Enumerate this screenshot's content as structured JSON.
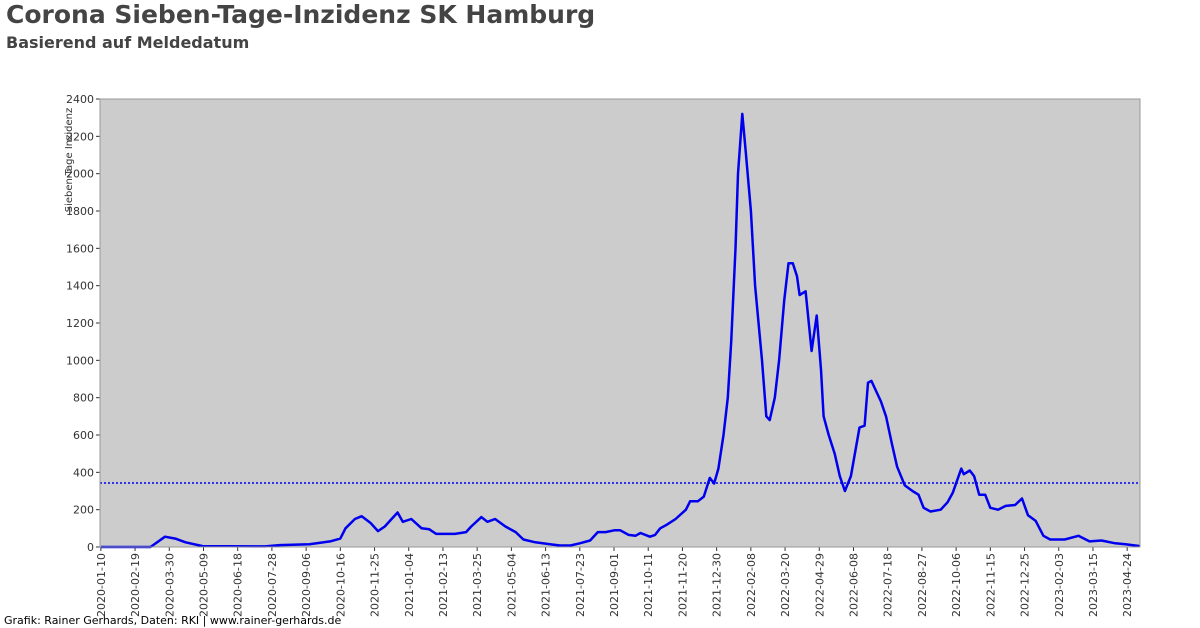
{
  "chart_data": {
    "type": "line",
    "title": "Corona Sieben-Tage-Inzidenz SK Hamburg",
    "subtitle": "Basierend auf Meldedatum",
    "y_label": "Sieben-Tage Inzidenz",
    "footer": "Grafik: Rainer Gerhards, Daten: RKI | www.rainer-gerhards.de",
    "x": [
      "2020-01-10",
      "2020-03-08",
      "2020-03-25",
      "2020-04-06",
      "2020-04-18",
      "2020-05-08",
      "2020-07-20",
      "2020-08-06",
      "2020-09-10",
      "2020-10-04",
      "2020-10-16",
      "2020-10-22",
      "2020-11-02",
      "2020-11-10",
      "2020-11-20",
      "2020-11-29",
      "2020-12-07",
      "2020-12-15",
      "2020-12-22",
      "2020-12-28",
      "2021-01-07",
      "2021-01-19",
      "2021-01-28",
      "2021-02-05",
      "2021-02-27",
      "2021-03-12",
      "2021-03-18",
      "2021-03-30",
      "2021-04-06",
      "2021-04-15",
      "2021-04-27",
      "2021-05-09",
      "2021-05-18",
      "2021-06-01",
      "2021-06-18",
      "2021-06-30",
      "2021-07-12",
      "2021-07-23",
      "2021-08-04",
      "2021-08-13",
      "2021-08-22",
      "2021-09-02",
      "2021-09-08",
      "2021-09-18",
      "2021-09-26",
      "2021-10-02",
      "2021-10-13",
      "2021-10-19",
      "2021-10-25",
      "2021-11-02",
      "2021-11-12",
      "2021-11-24",
      "2021-11-29",
      "2021-12-08",
      "2021-12-15",
      "2021-12-22",
      "2021-12-27",
      "2022-01-01",
      "2022-01-07",
      "2022-01-12",
      "2022-01-16",
      "2022-01-21",
      "2022-01-24",
      "2022-01-29",
      "2022-02-02",
      "2022-02-08",
      "2022-02-13",
      "2022-02-21",
      "2022-02-26",
      "2022-03-02",
      "2022-03-08",
      "2022-03-13",
      "2022-03-19",
      "2022-03-24",
      "2022-03-29",
      "2022-04-03",
      "2022-04-06",
      "2022-04-13",
      "2022-04-20",
      "2022-04-26",
      "2022-05-01",
      "2022-05-04",
      "2022-05-10",
      "2022-05-17",
      "2022-05-23",
      "2022-05-29",
      "2022-06-05",
      "2022-06-15",
      "2022-06-21",
      "2022-06-25",
      "2022-06-29",
      "2022-07-06",
      "2022-07-10",
      "2022-07-16",
      "2022-07-23",
      "2022-07-29",
      "2022-08-07",
      "2022-08-16",
      "2022-08-23",
      "2022-08-29",
      "2022-09-06",
      "2022-09-18",
      "2022-09-26",
      "2022-10-02",
      "2022-10-12",
      "2022-10-15",
      "2022-10-22",
      "2022-10-27",
      "2022-11-02",
      "2022-11-09",
      "2022-11-15",
      "2022-11-24",
      "2022-12-03",
      "2022-12-14",
      "2022-12-22",
      "2022-12-29",
      "2023-01-07",
      "2023-01-16",
      "2023-01-24",
      "2023-02-10",
      "2023-02-26",
      "2023-03-11",
      "2023-03-25",
      "2023-04-10",
      "2023-04-22",
      "2023-05-09"
    ],
    "series": [
      {
        "name": "Sieben-Tage Inzidenz",
        "color": "#0000ee",
        "values": [
          0,
          0,
          55,
          45,
          25,
          5,
          3,
          10,
          15,
          30,
          45,
          100,
          150,
          165,
          130,
          85,
          110,
          150,
          185,
          135,
          150,
          100,
          95,
          70,
          70,
          80,
          110,
          160,
          135,
          150,
          110,
          80,
          40,
          25,
          15,
          8,
          8,
          20,
          35,
          80,
          80,
          90,
          90,
          65,
          60,
          75,
          55,
          65,
          100,
          120,
          150,
          200,
          245,
          245,
          270,
          370,
          340,
          420,
          600,
          800,
          1100,
          1600,
          2000,
          2320,
          2120,
          1800,
          1400,
          1000,
          700,
          680,
          800,
          1000,
          1320,
          1520,
          1520,
          1450,
          1350,
          1370,
          1050,
          1240,
          950,
          700,
          600,
          500,
          380,
          300,
          380,
          640,
          650,
          880,
          890,
          820,
          780,
          700,
          550,
          430,
          330,
          300,
          280,
          210,
          190,
          200,
          240,
          290,
          420,
          390,
          410,
          380,
          280,
          280,
          210,
          200,
          220,
          225,
          260,
          170,
          140,
          60,
          40,
          40,
          60,
          30,
          35,
          20,
          15,
          5
        ]
      }
    ],
    "reference_line": {
      "value": 343,
      "color": "#0000ee"
    },
    "xlim": [
      "2020-01-09",
      "2023-05-09"
    ],
    "xticks": [
      "2020-01-10",
      "2020-02-19",
      "2020-03-30",
      "2020-05-09",
      "2020-06-18",
      "2020-07-28",
      "2020-09-06",
      "2020-10-16",
      "2020-11-25",
      "2021-01-04",
      "2021-02-13",
      "2021-03-25",
      "2021-05-04",
      "2021-06-13",
      "2021-07-23",
      "2021-09-01",
      "2021-10-11",
      "2021-11-20",
      "2021-12-30",
      "2022-02-08",
      "2022-03-20",
      "2022-04-29",
      "2022-06-08",
      "2022-07-18",
      "2022-08-27",
      "2022-10-06",
      "2022-11-15",
      "2022-12-25",
      "2023-02-03",
      "2023-03-15",
      "2023-04-24"
    ],
    "ylim": [
      0,
      2400
    ],
    "yticks": [
      0,
      200,
      400,
      600,
      800,
      1000,
      1200,
      1400,
      1600,
      1800,
      2000,
      2200,
      2400
    ],
    "background": "#cccccc"
  }
}
